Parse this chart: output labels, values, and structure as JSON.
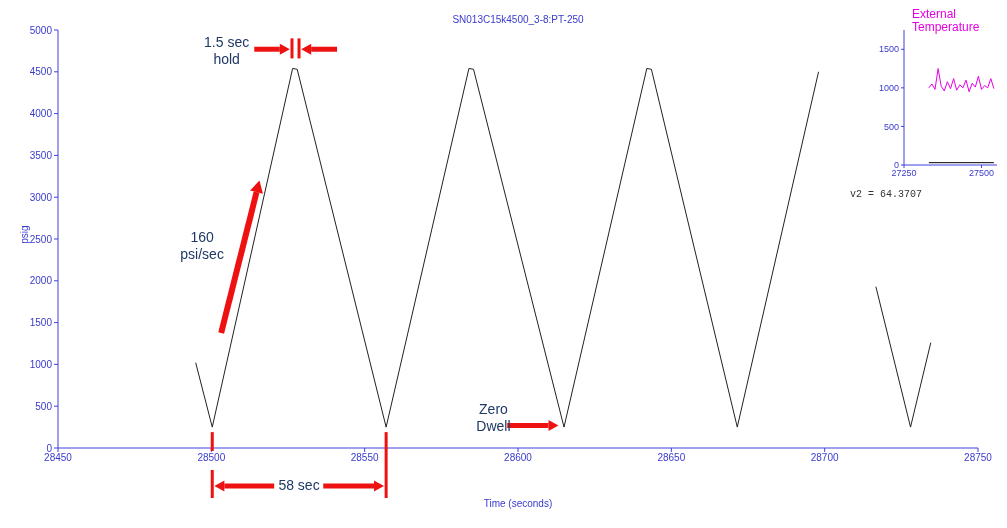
{
  "chart_data": [
    {
      "type": "line",
      "title": "SN013C15k4500_3-8:PT-250",
      "xlabel": "Time (seconds)",
      "ylabel": "psig",
      "series": [
        {
          "color": "#222222",
          "x": [
            28494.9,
            28500.3,
            28526.5,
            28528,
            28557,
            28584,
            28585.5,
            28615,
            28642,
            28643.5,
            28671.5,
            28698,
            28707,
            28716.7,
            28728,
            28734.6
          ],
          "values": [
            1020,
            250,
            4540,
            4530,
            250,
            4540,
            4530,
            250,
            4540,
            4530,
            250,
            4500,
            null,
            1930,
            250,
            1260
          ]
        }
      ],
      "xlim": [
        28450,
        28750
      ],
      "xticks": [
        28450,
        28500,
        28550,
        28600,
        28650,
        28700,
        28750
      ],
      "ylim": [
        0,
        5000
      ],
      "yticks": [
        0,
        500,
        1000,
        1500,
        2000,
        2500,
        3000,
        3500,
        4000,
        4500,
        5000
      ],
      "grid": false,
      "legend": false,
      "marker": "none",
      "line_style": "solid",
      "annotations": [
        "1.5 sec hold",
        "160 psi/sec",
        "58 sec",
        "Zero Dwell"
      ]
    },
    {
      "type": "line",
      "series": [
        {
          "name": "External Temperature",
          "color": "#e600e6",
          "x": [
            27330,
            27340,
            27350,
            27360,
            27370,
            27380,
            27390,
            27400,
            27410,
            27420,
            27430,
            27440,
            27450,
            27460,
            27470,
            27480,
            27490,
            27500,
            27510,
            27520,
            27530,
            27540
          ],
          "values": [
            1000,
            1050,
            980,
            1250,
            1020,
            960,
            1080,
            990,
            1120,
            970,
            1040,
            1000,
            1100,
            950,
            1060,
            1010,
            1150,
            980,
            1030,
            1000,
            1120,
            990
          ]
        },
        {
          "color": "#000000",
          "x": [
            27330,
            27540
          ],
          "values": [
            30,
            30
          ]
        }
      ],
      "xlim": [
        27250,
        27550
      ],
      "xticks": [
        27250,
        27500
      ],
      "ylim": [
        0,
        1750
      ],
      "yticks": [
        0,
        500,
        1000,
        1500
      ],
      "grid": false,
      "legend": false,
      "marker": "none",
      "line_style": "solid",
      "annotations": [
        "v2 = 64.3707"
      ]
    }
  ]
}
